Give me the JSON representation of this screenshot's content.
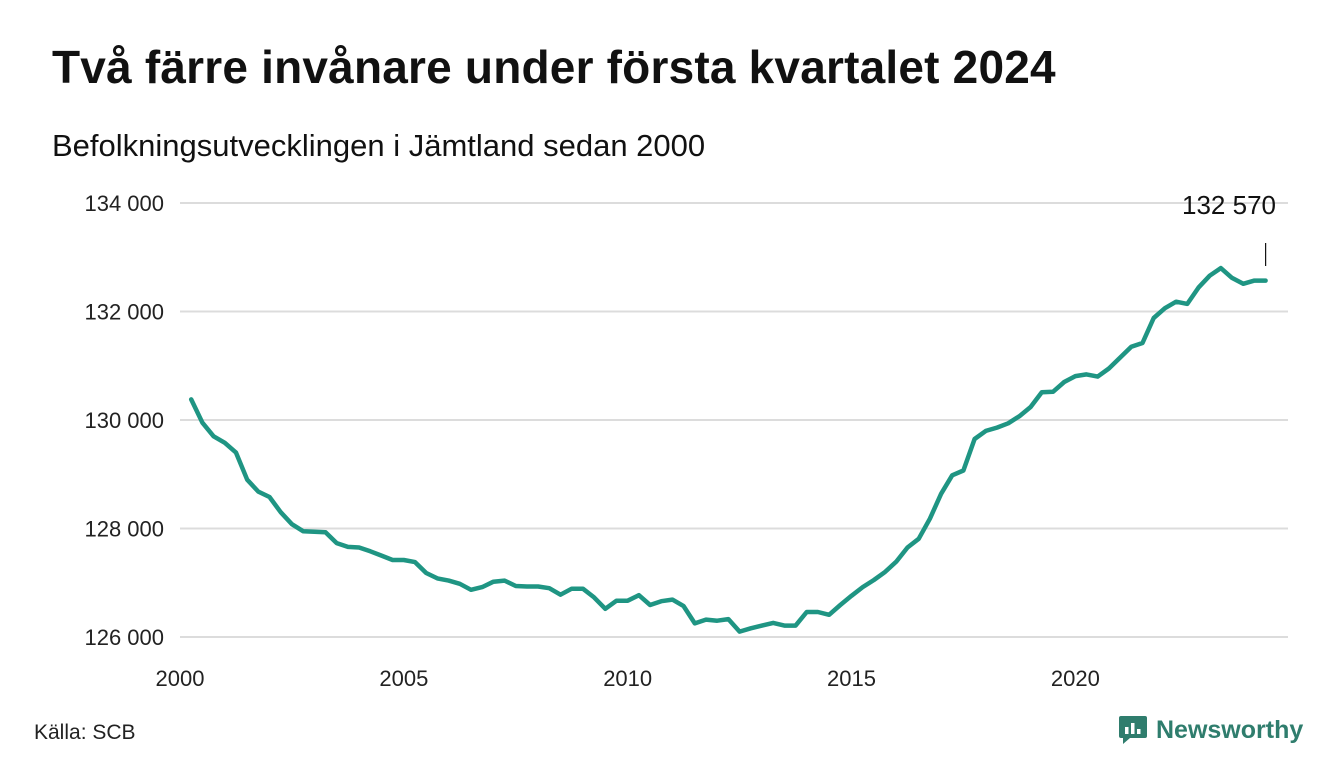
{
  "chart_data": {
    "type": "line",
    "title": "Två färre invånare under första kvartalet 2024",
    "subtitle": "Befolkningsutvecklingen i Jämtland sedan 2000",
    "xlabel": "",
    "ylabel": "",
    "xlim": [
      2000,
      2024.75
    ],
    "ylim": [
      126000,
      134000
    ],
    "x_ticks": [
      2000,
      2005,
      2010,
      2015,
      2020
    ],
    "x_tick_labels": [
      "2000",
      "2005",
      "2010",
      "2015",
      "2020"
    ],
    "y_ticks": [
      126000,
      128000,
      130000,
      132000,
      134000
    ],
    "y_tick_labels": [
      "126 000",
      "128 000",
      "130 000",
      "132 000",
      "134 000"
    ],
    "grid": "horizontal",
    "line_color": "#1f9583",
    "series": [
      {
        "x": [
          2000.25,
          2000.5,
          2000.75,
          2001,
          2001.25,
          2001.5,
          2001.75,
          2002,
          2002.25,
          2002.5,
          2002.75,
          2003,
          2003.25,
          2003.5,
          2003.75,
          2004,
          2004.25,
          2004.5,
          2004.75,
          2005,
          2005.25,
          2005.5,
          2005.75,
          2006,
          2006.25,
          2006.5,
          2006.75,
          2007,
          2007.25,
          2007.5,
          2007.75,
          2008,
          2008.25,
          2008.5,
          2008.75,
          2009,
          2009.25,
          2009.5,
          2009.75,
          2010,
          2010.25,
          2010.5,
          2010.75,
          2011,
          2011.25,
          2011.5,
          2011.75,
          2012,
          2012.25,
          2012.5,
          2012.75,
          2013,
          2013.25,
          2013.5,
          2013.75,
          2014,
          2014.25,
          2014.5,
          2014.75,
          2015,
          2015.25,
          2015.5,
          2015.75,
          2016,
          2016.25,
          2016.5,
          2016.75,
          2017,
          2017.25,
          2017.5,
          2017.75,
          2018,
          2018.25,
          2018.5,
          2018.75,
          2019,
          2019.25,
          2019.5,
          2019.75,
          2020,
          2020.25,
          2020.5,
          2020.75,
          2021,
          2021.25,
          2021.5,
          2021.75,
          2022,
          2022.25,
          2022.5,
          2022.75,
          2023,
          2023.25,
          2023.5,
          2023.75,
          2024,
          2024.25
        ],
        "y": [
          130380,
          129950,
          129700,
          129580,
          129400,
          128900,
          128680,
          128580,
          128300,
          128080,
          127950,
          127940,
          127930,
          127730,
          127660,
          127650,
          127580,
          127500,
          127420,
          127420,
          127380,
          127180,
          127080,
          127040,
          126980,
          126870,
          126920,
          127020,
          127040,
          126940,
          126930,
          126930,
          126900,
          126780,
          126890,
          126890,
          126730,
          126520,
          126670,
          126670,
          126770,
          126590,
          126660,
          126690,
          126570,
          126250,
          126320,
          126300,
          126330,
          126100,
          126160,
          126210,
          126260,
          126210,
          126210,
          126460,
          126460,
          126410,
          126590,
          126760,
          126920,
          127050,
          127200,
          127390,
          127650,
          127810,
          128180,
          128640,
          128980,
          129070,
          129650,
          129800,
          129860,
          129940,
          130070,
          130240,
          130510,
          130520,
          130700,
          130810,
          130840,
          130800,
          130950,
          131150,
          131350,
          131420,
          131880,
          132060,
          132180,
          132140,
          132440,
          132660,
          132800,
          132620,
          132510,
          132570,
          132570
        ]
      }
    ],
    "annotation": {
      "label": "132 570",
      "x": 2024.25,
      "y": 132570
    }
  },
  "footer": {
    "source": "Källa: SCB",
    "brand": "Newsworthy",
    "brand_color": "#2f7d6d"
  }
}
